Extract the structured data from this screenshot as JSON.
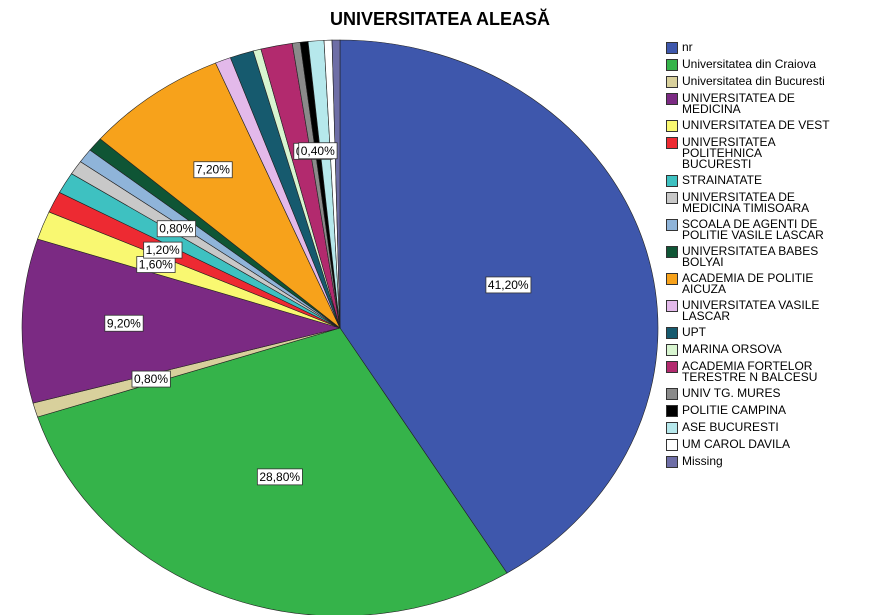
{
  "chart_data": {
    "type": "pie",
    "title": "UNIVERSITATEA ALEASĂ",
    "categories": [
      "nr",
      "Universitatea din Craiova",
      "Universitatea din Bucuresti",
      "UNIVERSITATEA DE MEDICINA",
      "UNIVERSITATEA DE VEST",
      "UNIVERSITATEA POLITEHNICA BUCURESTI",
      "STRAINATATE",
      "UNIVERSITATEA DE MEDICINA TIMISOARA",
      "SCOALA DE AGENTI DE POLITIE VASILE LASCAR",
      "UNIVERSITATEA BABES BOLYAI",
      "ACADEMIA DE POLITIE AICUZA",
      "UNIVERSITATEA VASILE LASCAR",
      "UPT",
      "MARINA ORSOVA",
      "ACADEMIA FORTELOR TERESTRE N BALCESU",
      "UNIV TG. MURES",
      "POLITIE CAMPINA",
      "ASE BUCURESTI",
      "UM CAROL DAVILA",
      "Missing"
    ],
    "values": [
      41.2,
      28.8,
      0.8,
      9.2,
      1.6,
      1.2,
      1.2,
      0.8,
      0.8,
      0.8,
      7.2,
      0.8,
      1.2,
      0.4,
      1.6,
      0.4,
      0.4,
      0.8,
      0.4,
      0.4
    ],
    "value_labels": [
      "41,20%",
      "28,80%",
      "0,80%",
      "9,20%",
      "1,60%",
      "1,20%",
      null,
      "0,80%",
      null,
      null,
      "7,20%",
      null,
      null,
      null,
      null,
      "0,40%",
      "0,40%",
      null,
      null,
      null
    ],
    "colors": [
      "#3e57ac",
      "#35b34a",
      "#d8d09c",
      "#7b2a83",
      "#f9f871",
      "#ed2a32",
      "#3ec1c1",
      "#c8c8c8",
      "#8fb4d9",
      "#0f5535",
      "#f7a21b",
      "#e3b9ea",
      "#165a6e",
      "#d8f5d0",
      "#b22a6e",
      "#8a8a8a",
      "#000000",
      "#b6e8ec",
      "#ffffff",
      "#6e6ea6"
    ]
  }
}
